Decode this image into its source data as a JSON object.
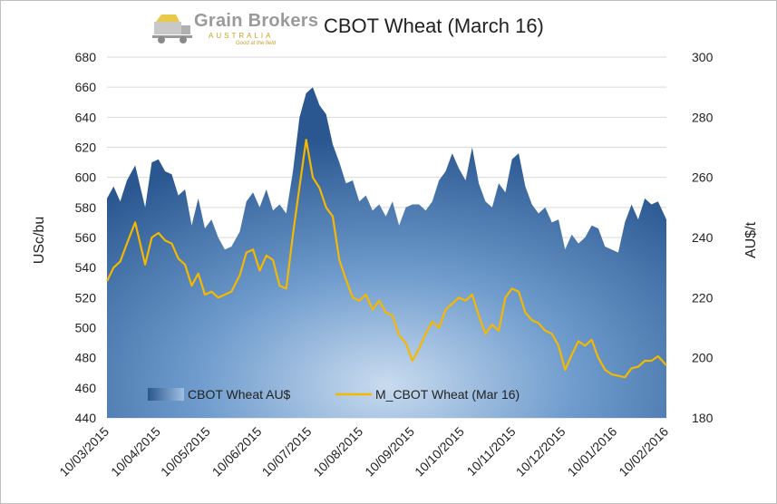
{
  "logo": {
    "name": "Grain Brokers",
    "sub": "AUSTRALIA",
    "tagline": "Good at the field"
  },
  "chart_data": {
    "type": "area+line",
    "title": "CBOT Wheat (March 16)",
    "ylabel_left": "USc/bu",
    "ylabel_right": "AU$/t",
    "ylim_left": [
      440,
      680
    ],
    "ylim_right": [
      180,
      300
    ],
    "yticks_left": [
      440,
      460,
      480,
      500,
      520,
      540,
      560,
      580,
      600,
      620,
      640,
      660,
      680
    ],
    "yticks_right": [
      180,
      200,
      220,
      240,
      260,
      280,
      300
    ],
    "x_ticks": [
      "10/03/2015",
      "10/04/2015",
      "10/05/2015",
      "10/06/2015",
      "10/07/2015",
      "10/08/2015",
      "10/09/2015",
      "10/10/2015",
      "10/11/2015",
      "10/12/2015",
      "10/01/2016",
      "10/02/2016"
    ],
    "xlim": [
      "10/03/2015",
      "10/02/2016"
    ],
    "grid": true,
    "legend_position": "bottom-left",
    "series": [
      {
        "name": "CBOT Wheat AU$",
        "type": "area",
        "axis": "right",
        "color": "#2e5e98",
        "points": [
          [
            "10/03/2015",
            253
          ],
          [
            "14/03/2015",
            257
          ],
          [
            "18/03/2015",
            252
          ],
          [
            "22/03/2015",
            259
          ],
          [
            "27/03/2015",
            264
          ],
          [
            "02/04/2015",
            250
          ],
          [
            "06/04/2015",
            265
          ],
          [
            "10/04/2015",
            266
          ],
          [
            "14/04/2015",
            262
          ],
          [
            "18/04/2015",
            261
          ],
          [
            "22/04/2015",
            254
          ],
          [
            "26/04/2015",
            256
          ],
          [
            "30/04/2015",
            244
          ],
          [
            "04/05/2015",
            253
          ],
          [
            "08/05/2015",
            243
          ],
          [
            "12/05/2015",
            246
          ],
          [
            "16/05/2015",
            240
          ],
          [
            "20/05/2015",
            236
          ],
          [
            "24/05/2015",
            237
          ],
          [
            "29/05/2015",
            242
          ],
          [
            "02/06/2015",
            252
          ],
          [
            "06/06/2015",
            255
          ],
          [
            "10/06/2015",
            250
          ],
          [
            "14/06/2015",
            256
          ],
          [
            "18/06/2015",
            249
          ],
          [
            "22/06/2015",
            251
          ],
          [
            "26/06/2015",
            248
          ],
          [
            "30/06/2015",
            262
          ],
          [
            "04/07/2015",
            280
          ],
          [
            "08/07/2015",
            288
          ],
          [
            "12/07/2015",
            290
          ],
          [
            "16/07/2015",
            284
          ],
          [
            "20/07/2015",
            281
          ],
          [
            "24/07/2015",
            271
          ],
          [
            "28/07/2015",
            265
          ],
          [
            "01/08/2015",
            258
          ],
          [
            "05/08/2015",
            259
          ],
          [
            "09/08/2015",
            252
          ],
          [
            "13/08/2015",
            254
          ],
          [
            "17/08/2015",
            249
          ],
          [
            "21/08/2015",
            251
          ],
          [
            "25/08/2015",
            247
          ],
          [
            "29/08/2015",
            252
          ],
          [
            "02/09/2015",
            244
          ],
          [
            "06/09/2015",
            250
          ],
          [
            "10/09/2015",
            251
          ],
          [
            "14/09/2015",
            251
          ],
          [
            "18/09/2015",
            249
          ],
          [
            "22/09/2015",
            252
          ],
          [
            "26/09/2015",
            259
          ],
          [
            "30/09/2015",
            262
          ],
          [
            "04/10/2015",
            268
          ],
          [
            "08/10/2015",
            263
          ],
          [
            "12/10/2015",
            259
          ],
          [
            "16/10/2015",
            270
          ],
          [
            "20/10/2015",
            258
          ],
          [
            "24/10/2015",
            252
          ],
          [
            "28/10/2015",
            250
          ],
          [
            "01/11/2015",
            258
          ],
          [
            "05/11/2015",
            255
          ],
          [
            "09/11/2015",
            266
          ],
          [
            "13/11/2015",
            268
          ],
          [
            "17/11/2015",
            257
          ],
          [
            "21/11/2015",
            251
          ],
          [
            "25/11/2015",
            248
          ],
          [
            "29/11/2015",
            250
          ],
          [
            "03/12/2015",
            245
          ],
          [
            "07/12/2015",
            246
          ],
          [
            "11/12/2015",
            236
          ],
          [
            "15/12/2015",
            241
          ],
          [
            "19/12/2015",
            238
          ],
          [
            "23/12/2015",
            240
          ],
          [
            "27/12/2015",
            244
          ],
          [
            "31/12/2015",
            243
          ],
          [
            "04/01/2016",
            237
          ],
          [
            "08/01/2016",
            236
          ],
          [
            "12/01/2016",
            235
          ],
          [
            "16/01/2016",
            245
          ],
          [
            "20/01/2016",
            251
          ],
          [
            "24/01/2016",
            246
          ],
          [
            "28/01/2016",
            253
          ],
          [
            "01/02/2016",
            251
          ],
          [
            "05/02/2016",
            252
          ],
          [
            "10/02/2016",
            246
          ]
        ]
      },
      {
        "name": "M_CBOT Wheat (Mar 16)",
        "type": "line",
        "axis": "left",
        "color": "#f5b800",
        "points": [
          [
            "10/03/2015",
            531
          ],
          [
            "14/03/2015",
            540
          ],
          [
            "18/03/2015",
            544
          ],
          [
            "22/03/2015",
            556
          ],
          [
            "27/03/2015",
            570
          ],
          [
            "02/04/2015",
            542
          ],
          [
            "06/04/2015",
            560
          ],
          [
            "10/04/2015",
            563
          ],
          [
            "14/04/2015",
            558
          ],
          [
            "18/04/2015",
            556
          ],
          [
            "22/04/2015",
            546
          ],
          [
            "26/04/2015",
            542
          ],
          [
            "30/04/2015",
            528
          ],
          [
            "04/05/2015",
            536
          ],
          [
            "08/05/2015",
            522
          ],
          [
            "12/05/2015",
            524
          ],
          [
            "16/05/2015",
            520
          ],
          [
            "20/05/2015",
            522
          ],
          [
            "24/05/2015",
            524
          ],
          [
            "29/05/2015",
            535
          ],
          [
            "02/06/2015",
            550
          ],
          [
            "06/06/2015",
            552
          ],
          [
            "10/06/2015",
            538
          ],
          [
            "14/06/2015",
            548
          ],
          [
            "18/06/2015",
            545
          ],
          [
            "22/06/2015",
            528
          ],
          [
            "26/06/2015",
            526
          ],
          [
            "30/06/2015",
            562
          ],
          [
            "04/07/2015",
            594
          ],
          [
            "08/07/2015",
            625
          ],
          [
            "12/07/2015",
            600
          ],
          [
            "16/07/2015",
            593
          ],
          [
            "20/07/2015",
            580
          ],
          [
            "24/07/2015",
            574
          ],
          [
            "28/07/2015",
            545
          ],
          [
            "01/08/2015",
            532
          ],
          [
            "05/08/2015",
            520
          ],
          [
            "09/08/2015",
            518
          ],
          [
            "13/08/2015",
            522
          ],
          [
            "17/08/2015",
            512
          ],
          [
            "21/08/2015",
            518
          ],
          [
            "25/08/2015",
            510
          ],
          [
            "29/08/2015",
            508
          ],
          [
            "02/09/2015",
            495
          ],
          [
            "06/09/2015",
            490
          ],
          [
            "10/09/2015",
            478
          ],
          [
            "14/09/2015",
            486
          ],
          [
            "18/09/2015",
            496
          ],
          [
            "22/09/2015",
            504
          ],
          [
            "26/09/2015",
            500
          ],
          [
            "30/09/2015",
            512
          ],
          [
            "04/10/2015",
            516
          ],
          [
            "08/10/2015",
            520
          ],
          [
            "12/10/2015",
            518
          ],
          [
            "16/10/2015",
            522
          ],
          [
            "20/10/2015",
            508
          ],
          [
            "24/10/2015",
            496
          ],
          [
            "28/10/2015",
            502
          ],
          [
            "01/11/2015",
            498
          ],
          [
            "05/11/2015",
            520
          ],
          [
            "09/11/2015",
            526
          ],
          [
            "13/11/2015",
            524
          ],
          [
            "17/11/2015",
            510
          ],
          [
            "21/11/2015",
            505
          ],
          [
            "25/11/2015",
            503
          ],
          [
            "29/11/2015",
            498
          ],
          [
            "03/12/2015",
            496
          ],
          [
            "07/12/2015",
            488
          ],
          [
            "11/12/2015",
            472
          ],
          [
            "15/12/2015",
            482
          ],
          [
            "19/12/2015",
            491
          ],
          [
            "23/12/2015",
            488
          ],
          [
            "27/12/2015",
            492
          ],
          [
            "31/12/2015",
            480
          ],
          [
            "04/01/2016",
            472
          ],
          [
            "08/01/2016",
            469
          ],
          [
            "12/01/2016",
            468
          ],
          [
            "16/01/2016",
            467
          ],
          [
            "20/01/2016",
            473
          ],
          [
            "24/01/2016",
            474
          ],
          [
            "28/01/2016",
            478
          ],
          [
            "01/02/2016",
            478
          ],
          [
            "05/02/2016",
            481
          ],
          [
            "10/02/2016",
            475
          ]
        ]
      }
    ]
  }
}
